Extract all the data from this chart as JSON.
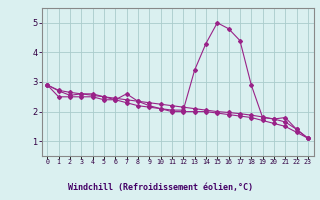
{
  "xlabel": "Windchill (Refroidissement éolien,°C)",
  "x": [
    0,
    1,
    2,
    3,
    4,
    5,
    6,
    7,
    8,
    9,
    10,
    11,
    12,
    13,
    14,
    15,
    16,
    17,
    18,
    19,
    20,
    21,
    22,
    23
  ],
  "y_main": [
    2.9,
    2.7,
    2.55,
    2.6,
    2.6,
    2.5,
    2.4,
    2.6,
    2.35,
    2.2,
    2.1,
    2.05,
    2.05,
    3.4,
    4.3,
    5.0,
    4.8,
    4.4,
    2.9,
    1.8,
    1.75,
    1.8,
    1.4,
    1.1
  ],
  "y_low": [
    2.9,
    2.5,
    2.5,
    2.5,
    2.5,
    2.4,
    2.4,
    2.3,
    2.2,
    2.15,
    2.1,
    2.0,
    2.0,
    2.0,
    2.0,
    1.95,
    1.9,
    1.85,
    1.8,
    1.7,
    1.6,
    1.5,
    1.3,
    1.1
  ],
  "y_trend": [
    2.9,
    2.72,
    2.65,
    2.6,
    2.55,
    2.5,
    2.45,
    2.4,
    2.35,
    2.3,
    2.25,
    2.2,
    2.15,
    2.1,
    2.05,
    2.0,
    1.97,
    1.93,
    1.88,
    1.82,
    1.75,
    1.65,
    1.4,
    1.1
  ],
  "color": "#992288",
  "bg_color": "#daf0f0",
  "grid_color": "#aacccc",
  "spine_color": "#888888",
  "xlim": [
    -0.5,
    23.5
  ],
  "ylim": [
    0.5,
    5.5
  ],
  "yticks": [
    1,
    2,
    3,
    4,
    5
  ],
  "xtick_labels": [
    "0",
    "1",
    "2",
    "3",
    "4",
    "5",
    "6",
    "7",
    "8",
    "9",
    "10",
    "11",
    "12",
    "13",
    "14",
    "15",
    "16",
    "17",
    "18",
    "19",
    "20",
    "21",
    "22",
    "23"
  ]
}
